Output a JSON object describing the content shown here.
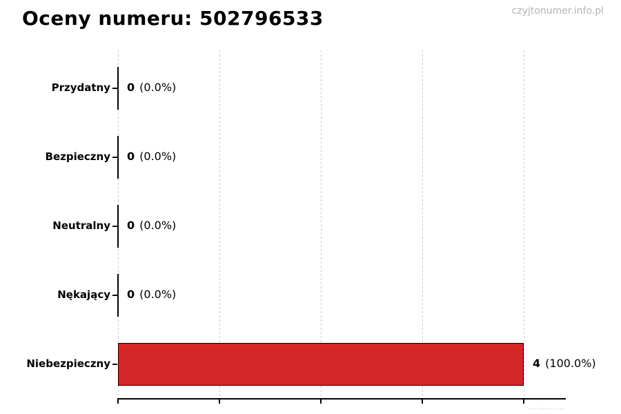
{
  "page": {
    "watermark_top": "czyjtonumer.info.pl",
    "watermark_bottom": "czyjtonumer.info.pl"
  },
  "chart_data": {
    "type": "bar",
    "orientation": "horizontal",
    "title": "Oceny numeru: 502796533",
    "categories": [
      "Przydatny",
      "Bezpieczny",
      "Neutralny",
      "Nękający",
      "Niebezpieczny"
    ],
    "values": [
      0,
      0,
      0,
      0,
      4
    ],
    "percentages": [
      0.0,
      0.0,
      0.0,
      0.0,
      100.0
    ],
    "value_labels": [
      {
        "count": "0",
        "pct": "(0.0%)"
      },
      {
        "count": "0",
        "pct": "(0.0%)"
      },
      {
        "count": "0",
        "pct": "(0.0%)"
      },
      {
        "count": "0",
        "pct": "(0.0%)"
      },
      {
        "count": "4",
        "pct": "(100.0%)"
      }
    ],
    "x_ticks": [
      0,
      1,
      2,
      3,
      4
    ],
    "xlim": [
      0,
      4.4
    ],
    "grid": true,
    "grid_color": "#c9c9c9",
    "grid_style": "dashed",
    "bar_color": "#d62728",
    "bar_edge_color": "#000000",
    "legend": "none"
  }
}
